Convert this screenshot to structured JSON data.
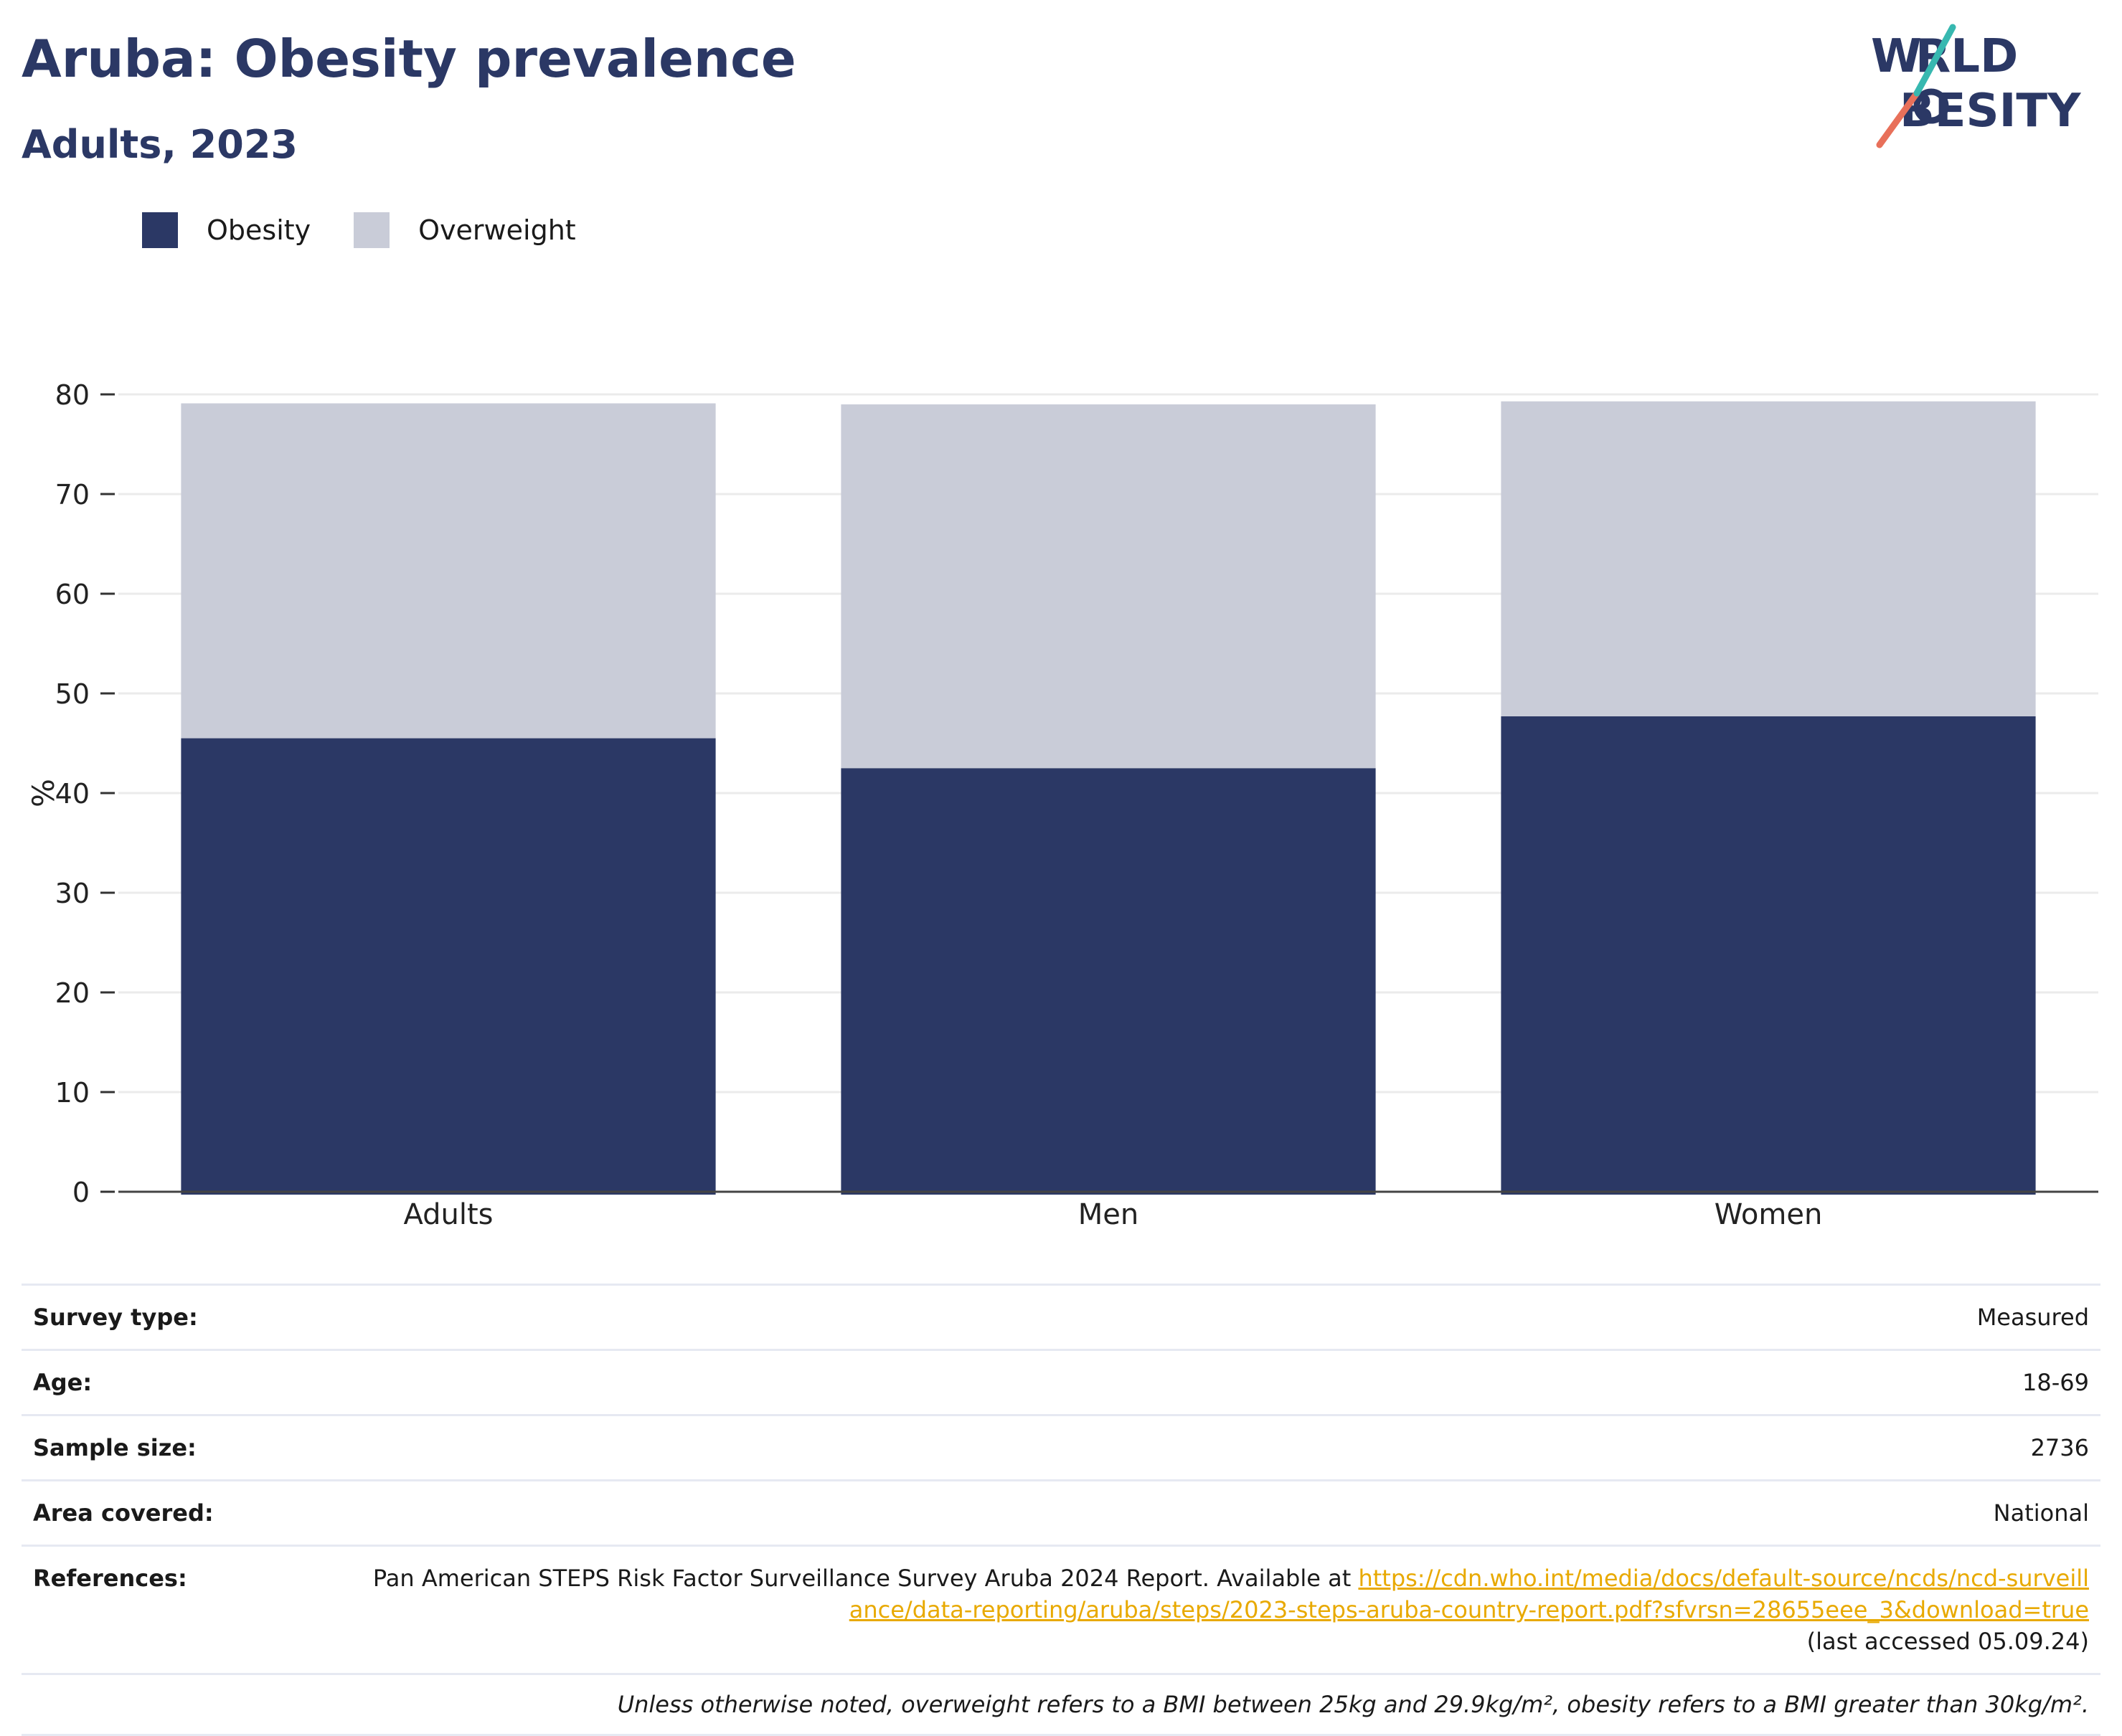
{
  "header": {
    "title": "Aruba: Obesity prevalence",
    "subtitle": "Adults, 2023"
  },
  "logo": {
    "line1": "WORLD",
    "line2": "OBESITY"
  },
  "colors": {
    "obesity": "#2b3865",
    "overweight": "#c9ccd8",
    "title": "#2b3865",
    "link": "#e8a900"
  },
  "chart_data": {
    "type": "bar",
    "stacked": true,
    "categories": [
      "Adults",
      "Men",
      "Women"
    ],
    "series": [
      {
        "name": "Obesity",
        "values": [
          45.5,
          42.5,
          47.7
        ]
      },
      {
        "name": "Overweight",
        "values": [
          33.6,
          36.5,
          31.6
        ]
      }
    ],
    "ylabel": "%",
    "ylim": [
      0,
      80
    ],
    "yticks": [
      0,
      10,
      20,
      30,
      40,
      50,
      60,
      70,
      80
    ],
    "grid": true,
    "legend_position": "top-left"
  },
  "meta": {
    "rows": [
      {
        "label": "Survey type:",
        "value": "Measured"
      },
      {
        "label": "Age:",
        "value": "18-69"
      },
      {
        "label": "Sample size:",
        "value": "2736"
      },
      {
        "label": "Area covered:",
        "value": "National"
      }
    ],
    "references_label": "References:",
    "references_text": "Pan American STEPS Risk Factor Surveillance Survey Aruba 2024 Report. Available at ",
    "references_link": "https://cdn.who.int/media/docs/default-source/ncds/ncd-surveillance/data-reporting/aruba/steps/2023-steps-aruba-country-report.pdf?sfvrsn=28655eee_3&download=true",
    "references_accessed": "(last accessed 05.09.24)",
    "note": "Unless otherwise noted, overweight refers to a BMI between 25kg and 29.9kg/m², obesity refers to a BMI greater than 30kg/m²."
  }
}
